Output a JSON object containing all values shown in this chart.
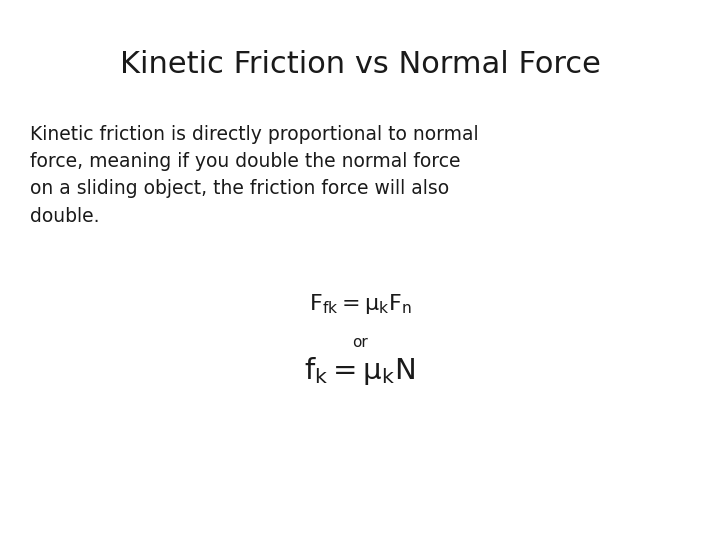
{
  "title": "Kinetic Friction vs Normal Force",
  "body_text": "Kinetic friction is directly proportional to normal\nforce, meaning if you double the normal force\non a sliding object, the friction force will also\ndouble.",
  "eq1": "$\\mathsf{F_{fk} = \\mu_k F_n}$",
  "or_text": "or",
  "eq2": "$\\mathsf{f_k = \\mu_k N}$",
  "background_color": "#ffffff",
  "text_color": "#1a1a1a",
  "title_fontsize": 22,
  "body_fontsize": 13.5,
  "eq1_fontsize": 16,
  "or_fontsize": 11,
  "eq2_fontsize": 21
}
